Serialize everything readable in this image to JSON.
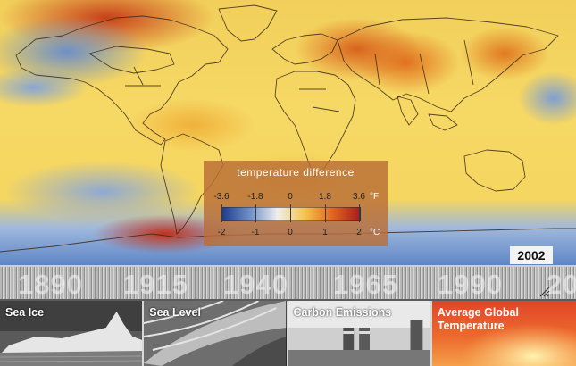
{
  "map": {
    "year": "2002",
    "legend": {
      "title": "temperature difference",
      "fahrenheit_ticks": [
        "-3.6",
        "-1.8",
        "0",
        "1.8",
        "3.6"
      ],
      "celsius_ticks": [
        "-2",
        "-1",
        "0",
        "1",
        "2"
      ],
      "fahrenheit_unit": "°F",
      "celsius_unit": "°C",
      "colors": [
        "#1d3e8c",
        "#6f8fc8",
        "#efefef",
        "#f3c54a",
        "#e2651e",
        "#a71d1d"
      ]
    }
  },
  "timeline": {
    "years": [
      "1890",
      "1915",
      "1940",
      "1965",
      "1990",
      "20"
    ]
  },
  "tabs": [
    {
      "label": "Sea Ice"
    },
    {
      "label": "Sea Level"
    },
    {
      "label": "Carbon Emissions"
    },
    {
      "label": "Average Global Temperature",
      "active": true,
      "accent": "#e2452a"
    }
  ]
}
